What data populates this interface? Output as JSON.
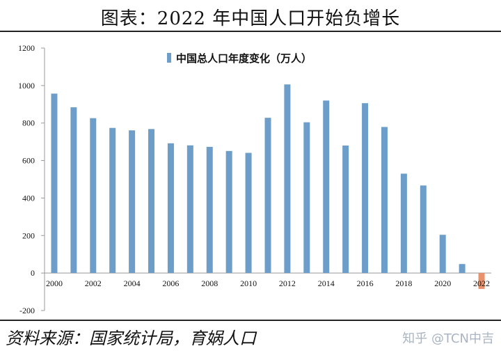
{
  "header": {
    "title": "图表：2022 年中国人口开始负增长"
  },
  "footer": {
    "source": "资料来源：国家统计局，育娲人口",
    "watermark": "知乎 @TCN中吉"
  },
  "colors": {
    "bar": "#6d9ec9",
    "bar_negative": "#e8916a",
    "axis": "#999999",
    "text": "#111111"
  },
  "chart_data": {
    "type": "bar",
    "title": "",
    "xlabel": "",
    "ylabel": "",
    "ylim": [
      -200,
      1200
    ],
    "yticks": [
      -200,
      0,
      200,
      400,
      600,
      800,
      1000,
      1200
    ],
    "grid": false,
    "legend": {
      "position": "top-center",
      "items": [
        "中国总人口年度变化（万人）"
      ]
    },
    "categories": [
      "2000",
      "2001",
      "2002",
      "2003",
      "2004",
      "2005",
      "2006",
      "2007",
      "2008",
      "2009",
      "2010",
      "2011",
      "2012",
      "2013",
      "2014",
      "2015",
      "2016",
      "2017",
      "2018",
      "2019",
      "2020",
      "2021",
      "2022"
    ],
    "tick_labels": [
      "2000",
      "2002",
      "2004",
      "2006",
      "2008",
      "2010",
      "2012",
      "2014",
      "2016",
      "2018",
      "2020",
      "2022"
    ],
    "series": [
      {
        "name": "中国总人口年度变化（万人）",
        "values": [
          957,
          884,
          826,
          774,
          761,
          768,
          692,
          681,
          673,
          651,
          641,
          828,
          1006,
          804,
          920,
          680,
          906,
          779,
          530,
          467,
          204,
          48,
          -85
        ]
      }
    ]
  }
}
